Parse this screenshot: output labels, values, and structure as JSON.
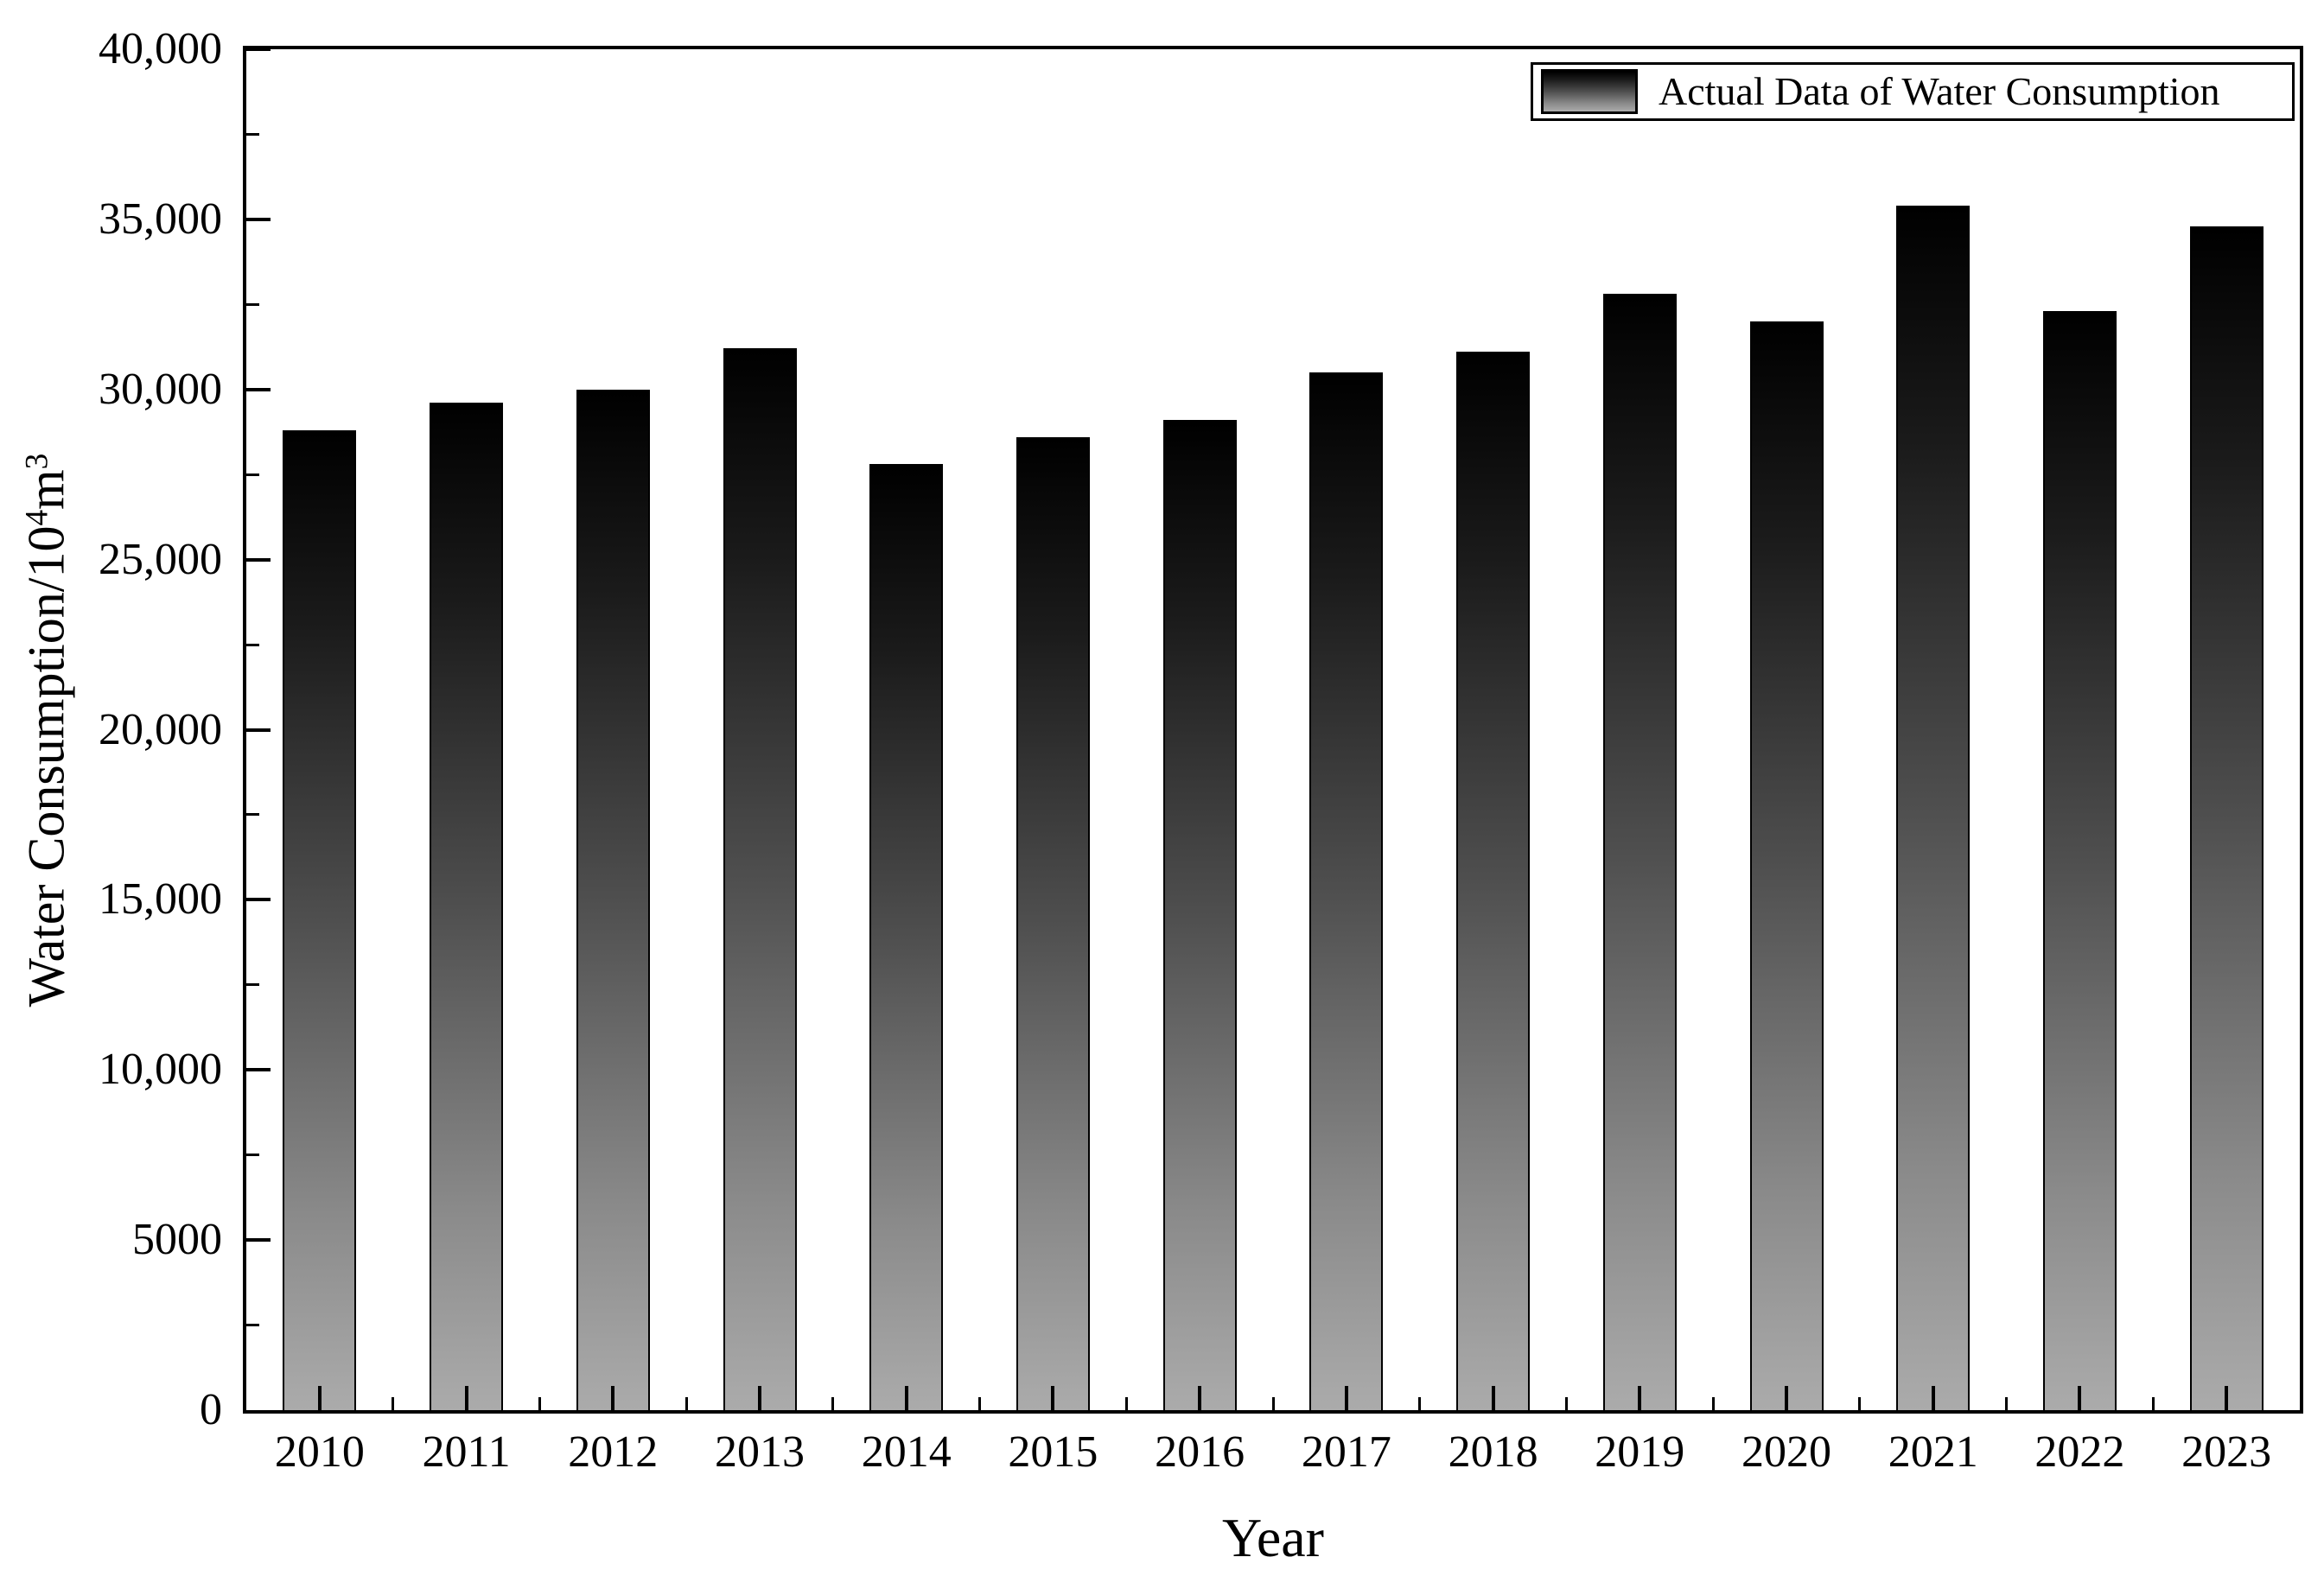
{
  "chart_data": {
    "type": "bar",
    "title": "",
    "categories": [
      "2010",
      "2011",
      "2012",
      "2013",
      "2014",
      "2015",
      "2016",
      "2017",
      "2018",
      "2019",
      "2020",
      "2021",
      "2022",
      "2023"
    ],
    "values": [
      28800,
      29600,
      30000,
      31200,
      27800,
      28600,
      29100,
      30500,
      31100,
      32800,
      32000,
      35400,
      32300,
      34800
    ],
    "series": [
      {
        "name": "Actual Data of Water Consumption"
      }
    ],
    "xlabel": "Year",
    "ylabel": "Water Consumption/10⁴m³",
    "ylim": [
      0,
      40000
    ],
    "y_major_step": 5000,
    "y_minor_step": 2500,
    "y_ticks": [
      {
        "value": 0,
        "label": "0"
      },
      {
        "value": 5000,
        "label": "5000"
      },
      {
        "value": 10000,
        "label": "10,000"
      },
      {
        "value": 15000,
        "label": "15,000"
      },
      {
        "value": 20000,
        "label": "20,000"
      },
      {
        "value": 25000,
        "label": "25,000"
      },
      {
        "value": 30000,
        "label": "30,000"
      },
      {
        "value": 35000,
        "label": "35,000"
      },
      {
        "value": 40000,
        "label": "40,000"
      }
    ],
    "legend_position": "top-right",
    "grid": false,
    "bar_style": {
      "gradient_top": "#000000",
      "gradient_bottom": "#ababab",
      "border": "#000000"
    }
  },
  "legend": {
    "label": "Actual Data of Water Consumption"
  },
  "axes": {
    "x_title": "Year",
    "y_title_parts": {
      "base1": "Water Consumption/10",
      "sup1": "4",
      "base2": "m",
      "sup2": "3"
    }
  }
}
